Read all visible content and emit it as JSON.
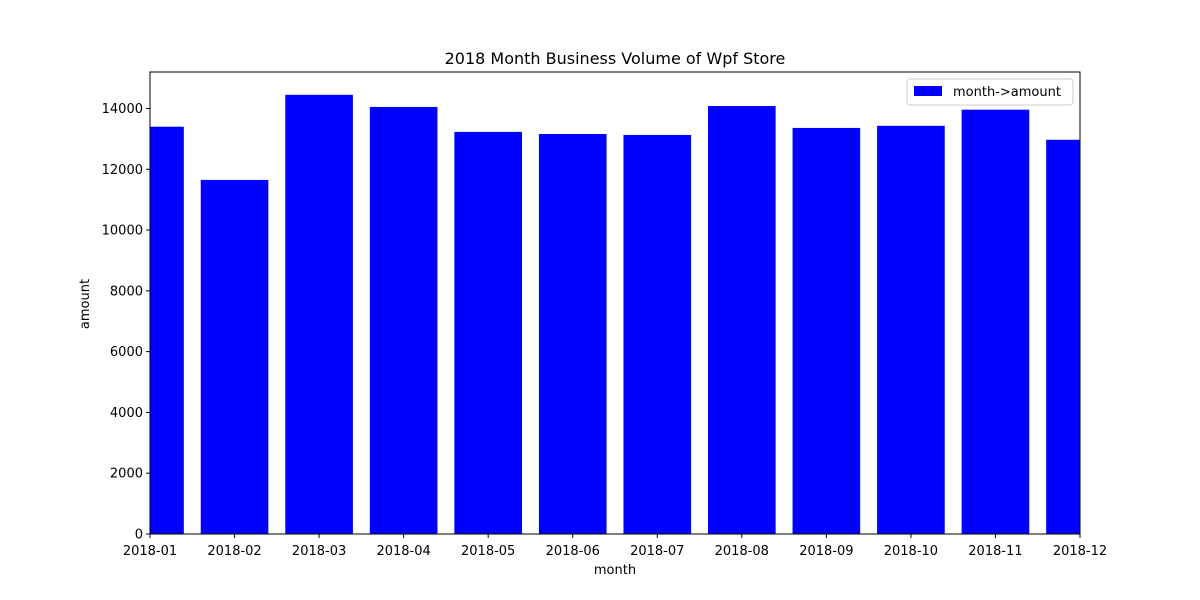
{
  "chart_data": {
    "type": "bar",
    "title": "2018 Month Business Volume of Wpf Store",
    "xlabel": "month",
    "ylabel": "amount",
    "categories": [
      "2018-01",
      "2018-02",
      "2018-03",
      "2018-04",
      "2018-05",
      "2018-06",
      "2018-07",
      "2018-08",
      "2018-09",
      "2018-10",
      "2018-11",
      "2018-12"
    ],
    "series": [
      {
        "name": "month->amount",
        "color": "#0000ff",
        "values": [
          13400,
          11650,
          14450,
          14050,
          13230,
          13160,
          13130,
          14080,
          13360,
          13430,
          13960,
          12970
        ]
      }
    ],
    "ylim": [
      0,
      15200
    ],
    "yticks": [
      0,
      2000,
      4000,
      6000,
      8000,
      10000,
      12000,
      14000
    ],
    "grid": false,
    "legend_position": "top-right"
  }
}
